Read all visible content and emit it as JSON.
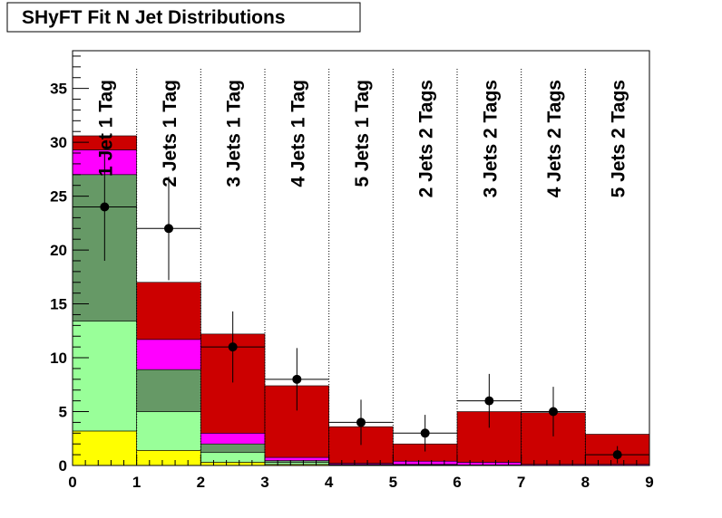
{
  "chart_data": {
    "type": "bar",
    "stacked": true,
    "title": "SHyFT Fit N Jet Distributions",
    "xlabel": "",
    "ylabel": "",
    "xlim": [
      0,
      9
    ],
    "ylim": [
      0,
      38.5
    ],
    "x_ticks": [
      0,
      1,
      2,
      3,
      4,
      5,
      6,
      7,
      8,
      9
    ],
    "y_ticks": [
      0,
      5,
      10,
      15,
      20,
      25,
      30,
      35
    ],
    "bin_edges": [
      0,
      1,
      2,
      3,
      4,
      5,
      6,
      7,
      8,
      9
    ],
    "categories": [
      "1 Jet 1 Tag",
      "2 Jets 1 Tag",
      "3 Jets 1 Tag",
      "4 Jets 1 Tag",
      "5 Jets 1 Tag",
      "2 Jets 2 Tags",
      "3 Jets 2 Tags",
      "4 Jets 2 Tags",
      "5 Jets 2 Tags"
    ],
    "grid": false,
    "bin_separators": "dotted",
    "legend": "none",
    "series": [
      {
        "color": "#ffff00",
        "values": [
          3.2,
          1.4,
          0.3,
          0.1,
          0.0,
          0.0,
          0.0,
          0.0,
          0.0
        ]
      },
      {
        "color": "#99ff99",
        "values": [
          10.2,
          3.6,
          0.9,
          0.2,
          0.05,
          0.05,
          0.0,
          0.0,
          0.0
        ]
      },
      {
        "color": "#669966",
        "values": [
          13.6,
          3.9,
          0.8,
          0.15,
          0.05,
          0.05,
          0.05,
          0.0,
          0.0
        ]
      },
      {
        "color": "#ff00ff",
        "values": [
          2.3,
          2.8,
          1.0,
          0.3,
          0.1,
          0.3,
          0.25,
          0.1,
          0.1
        ]
      },
      {
        "color": "#cc0000",
        "values": [
          1.3,
          5.3,
          9.2,
          6.65,
          3.4,
          1.6,
          4.7,
          4.8,
          2.8
        ]
      }
    ],
    "observed": {
      "values": [
        24,
        22,
        11,
        8,
        4,
        3,
        6,
        5,
        1
      ],
      "err_low": [
        5,
        4.8,
        3.3,
        2.9,
        2.1,
        1.7,
        2.5,
        2.3,
        0.8
      ],
      "err_high": [
        5,
        4.8,
        3.3,
        2.9,
        2.1,
        1.7,
        2.5,
        2.3,
        0.8
      ]
    },
    "colors": {
      "observed": "#000000",
      "separator": "#000000"
    }
  }
}
